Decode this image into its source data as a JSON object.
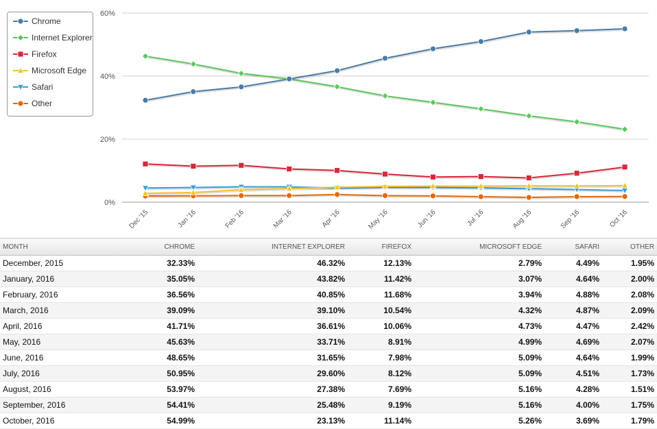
{
  "chart_data": {
    "type": "line",
    "categories": [
      "Dec '15",
      "Jan '16",
      "Feb '16",
      "Mar '16",
      "Apr '16",
      "May '16",
      "Jun '16",
      "Jul '16",
      "Aug '16",
      "Sep '16",
      "Oct '16"
    ],
    "ylim": [
      0,
      60
    ],
    "yticks": [
      0,
      20,
      40,
      60
    ],
    "ytick_labels": [
      "0%",
      "20%",
      "40%",
      "60%"
    ],
    "grid": true,
    "legend": "top-left",
    "series": [
      {
        "name": "Chrome",
        "color": "#4a7ba6",
        "marker": "circle",
        "values": [
          32.33,
          35.05,
          36.56,
          39.09,
          41.71,
          45.63,
          48.65,
          50.95,
          53.97,
          54.41,
          54.99
        ]
      },
      {
        "name": "Internet Explorer",
        "color": "#5ec55e",
        "marker": "diamond",
        "values": [
          46.32,
          43.82,
          40.85,
          39.1,
          36.61,
          33.71,
          31.65,
          29.6,
          27.38,
          25.48,
          23.13
        ]
      },
      {
        "name": "Firefox",
        "color": "#d9263b",
        "marker": "square",
        "values": [
          12.13,
          11.42,
          11.68,
          10.54,
          10.06,
          8.91,
          7.98,
          8.12,
          7.69,
          9.19,
          11.14
        ]
      },
      {
        "name": "Microsoft Edge",
        "color": "#f2c230",
        "marker": "triangle",
        "values": [
          2.79,
          3.07,
          3.94,
          4.32,
          4.73,
          4.99,
          5.09,
          5.09,
          5.16,
          5.16,
          5.26
        ]
      },
      {
        "name": "Safari",
        "color": "#3a9ed6",
        "marker": "triangle-down",
        "values": [
          4.49,
          4.64,
          4.88,
          4.87,
          4.47,
          4.69,
          4.64,
          4.51,
          4.28,
          4.0,
          3.69
        ]
      },
      {
        "name": "Other",
        "color": "#e06a0a",
        "marker": "circle",
        "values": [
          1.95,
          2.0,
          2.08,
          2.09,
          2.42,
          2.07,
          1.99,
          1.73,
          1.51,
          1.75,
          1.79
        ]
      }
    ]
  },
  "table": {
    "headers": [
      "MONTH",
      "CHROME",
      "INTERNET EXPLORER",
      "FIREFOX",
      "MICROSOFT EDGE",
      "SAFARI",
      "OTHER"
    ],
    "rows": [
      [
        "December, 2015",
        "32.33%",
        "46.32%",
        "12.13%",
        "2.79%",
        "4.49%",
        "1.95%"
      ],
      [
        "January, 2016",
        "35.05%",
        "43.82%",
        "11.42%",
        "3.07%",
        "4.64%",
        "2.00%"
      ],
      [
        "February, 2016",
        "36.56%",
        "40.85%",
        "11.68%",
        "3.94%",
        "4.88%",
        "2.08%"
      ],
      [
        "March, 2016",
        "39.09%",
        "39.10%",
        "10.54%",
        "4.32%",
        "4.87%",
        "2.09%"
      ],
      [
        "April, 2016",
        "41.71%",
        "36.61%",
        "10.06%",
        "4.73%",
        "4.47%",
        "2.42%"
      ],
      [
        "May, 2016",
        "45.63%",
        "33.71%",
        "8.91%",
        "4.99%",
        "4.69%",
        "2.07%"
      ],
      [
        "June, 2016",
        "48.65%",
        "31.65%",
        "7.98%",
        "5.09%",
        "4.64%",
        "1.99%"
      ],
      [
        "July, 2016",
        "50.95%",
        "29.60%",
        "8.12%",
        "5.09%",
        "4.51%",
        "1.73%"
      ],
      [
        "August, 2016",
        "53.97%",
        "27.38%",
        "7.69%",
        "5.16%",
        "4.28%",
        "1.51%"
      ],
      [
        "September, 2016",
        "54.41%",
        "25.48%",
        "9.19%",
        "5.16%",
        "4.00%",
        "1.75%"
      ],
      [
        "October, 2016",
        "54.99%",
        "23.13%",
        "11.14%",
        "5.26%",
        "3.69%",
        "1.79%"
      ]
    ]
  }
}
